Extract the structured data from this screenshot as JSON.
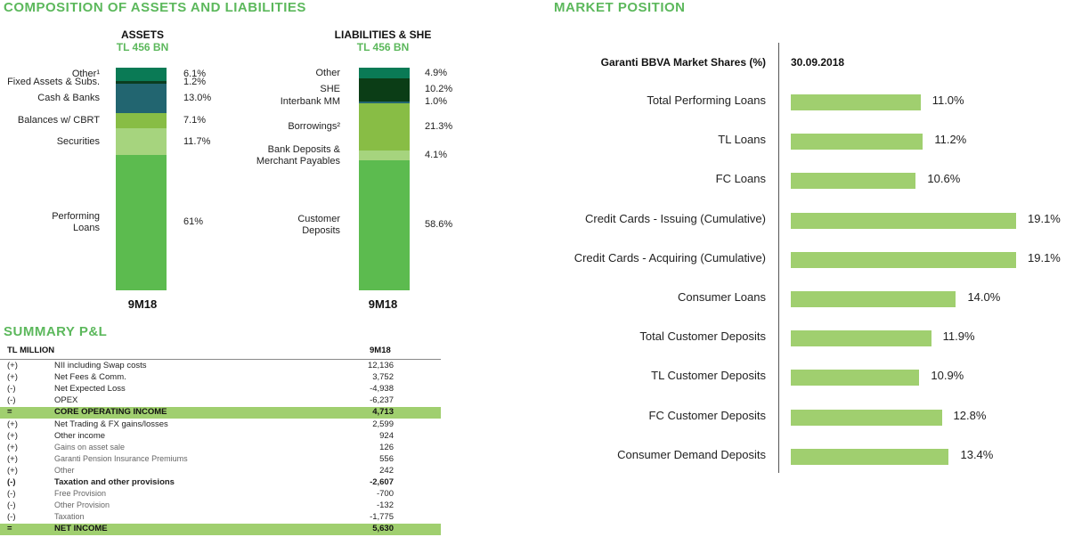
{
  "composition": {
    "title": "COMPOSITION OF ASSETS AND LIABILITIES",
    "assets": {
      "heading": "ASSETS",
      "total": "TL 456 BN",
      "period": "9M18",
      "segments": [
        {
          "label": "Other¹",
          "value": 6.1,
          "display": "6.1%",
          "color": "#0a7a55"
        },
        {
          "label": "Fixed Assets & Subs.",
          "value": 1.2,
          "display": "1.2%",
          "color": "#0b3d20"
        },
        {
          "label": "Cash & Banks",
          "value": 13.0,
          "display": "13.0%",
          "color": "#226570"
        },
        {
          "label": "Balances w/ CBRT",
          "value": 7.1,
          "display": "7.1%",
          "color": "#88bd45"
        },
        {
          "label": "Securities",
          "value": 11.7,
          "display": "11.7%",
          "color": "#a6d47e"
        },
        {
          "label": "Performing\nLoans",
          "value": 61,
          "display": "61%",
          "color": "#5cbb4f"
        }
      ]
    },
    "liabilities": {
      "heading": "LIABILITIES & SHE",
      "total": "TL 456 BN",
      "period": "9M18",
      "segments": [
        {
          "label": "Other",
          "value": 4.9,
          "display": "4.9%",
          "color": "#0a7a55"
        },
        {
          "label": "SHE",
          "value": 10.2,
          "display": "10.2%",
          "color": "#0b3d16"
        },
        {
          "label": "Interbank MM",
          "value": 1.0,
          "display": "1.0%",
          "color": "#226570"
        },
        {
          "label": "Borrowings²",
          "value": 21.3,
          "display": "21.3%",
          "color": "#88bd45"
        },
        {
          "label": "Bank Deposits &\nMerchant Payables",
          "value": 4.1,
          "display": "4.1%",
          "color": "#a6d47e"
        },
        {
          "label": "Customer\nDeposits",
          "value": 58.6,
          "display": "58.6%",
          "color": "#5cbb4f"
        }
      ]
    }
  },
  "pl": {
    "title": "SUMMARY P&L",
    "col_header": "TL MILLION",
    "period": "9M18",
    "rows": [
      {
        "sign": "(+)",
        "label": "NII including Swap costs",
        "value": "12,136",
        "style": ""
      },
      {
        "sign": "(+)",
        "label": "Net Fees & Comm.",
        "value": "3,752",
        "style": ""
      },
      {
        "sign": "(-)",
        "label": "Net Expected Loss",
        "value": "-4,938",
        "style": ""
      },
      {
        "sign": "(-)",
        "label": "OPEX",
        "value": "-6,237",
        "style": ""
      },
      {
        "sign": "=",
        "label": "CORE OPERATING INCOME",
        "value": "4,713",
        "style": "hl"
      },
      {
        "sign": "(+)",
        "label": "Net Trading & FX gains/losses",
        "value": "2,599",
        "style": ""
      },
      {
        "sign": "(+)",
        "label": "Other income",
        "value": "924",
        "style": ""
      },
      {
        "sign": "(+)",
        "label": "Gains on asset sale",
        "value": "126",
        "style": "sub"
      },
      {
        "sign": "(+)",
        "label": "Garanti Pension Insurance Premiums",
        "value": "556",
        "style": "sub"
      },
      {
        "sign": "(+)",
        "label": "Other",
        "value": "242",
        "style": "sub"
      },
      {
        "sign": "(-)",
        "label": "Taxation and other provisions",
        "value": "-2,607",
        "style": "bold"
      },
      {
        "sign": "(-)",
        "label": "Free Provision",
        "value": "-700",
        "style": "sub"
      },
      {
        "sign": "(-)",
        "label": "Other Provision",
        "value": "-132",
        "style": "sub"
      },
      {
        "sign": "(-)",
        "label": "Taxation",
        "value": "-1,775",
        "style": "sub"
      },
      {
        "sign": "=",
        "label": "NET INCOME",
        "value": "5,630",
        "style": "hl"
      }
    ]
  },
  "market": {
    "title": "MARKET POSITION",
    "header_label": "Garanti BBVA Market Shares (%)",
    "header_date": "30.09.2018"
  },
  "chart_data": {
    "type": "bar",
    "orientation": "horizontal",
    "categories": [
      "Total Performing Loans",
      "TL Loans",
      "FC Loans",
      "Credit Cards - Issuing (Cumulative)",
      "Credit Cards - Acquiring (Cumulative)",
      "Consumer Loans",
      "Total Customer Deposits",
      "TL Customer Deposits",
      "FC Customer Deposits",
      "Consumer Demand Deposits"
    ],
    "values": [
      11.0,
      11.2,
      10.6,
      19.1,
      19.1,
      14.0,
      11.9,
      10.9,
      12.8,
      13.4
    ],
    "value_labels": [
      "11.0%",
      "11.2%",
      "10.6%",
      "19.1%",
      "19.1%",
      "14.0%",
      "11.9%",
      "10.9%",
      "12.8%",
      "13.4%"
    ],
    "bar_color": "#a0cf6f",
    "xlim": [
      0,
      19.1
    ]
  }
}
